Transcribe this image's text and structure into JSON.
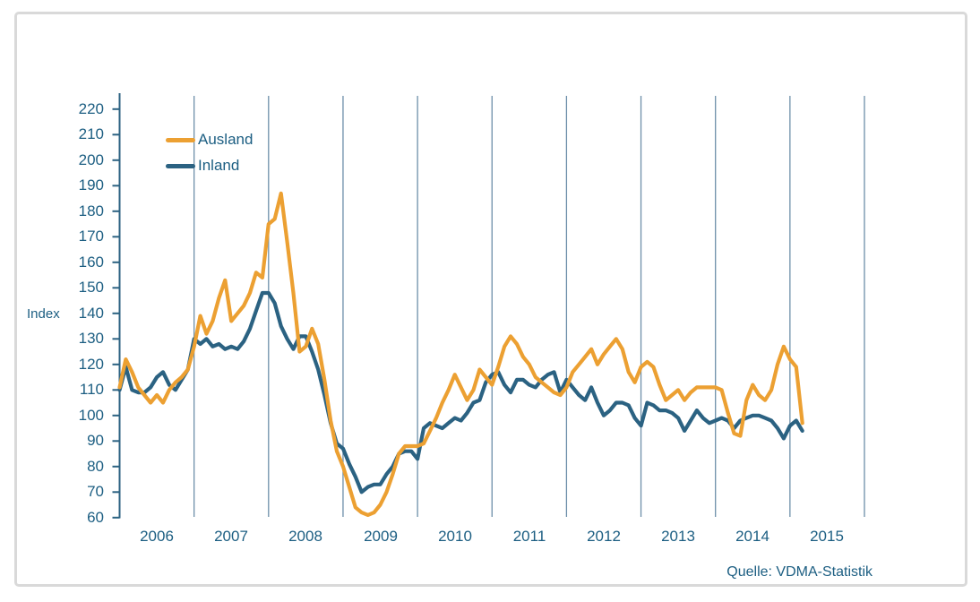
{
  "source_note": "Quelle: VDMA-Statistik",
  "colors": {
    "ausland": "#eca032",
    "inland": "#2b6282",
    "axis": "#2c6282",
    "gridline": "#6d8fa9",
    "text": "#1c5e82",
    "frame_border": "#d9d9d9"
  },
  "legend": {
    "items": [
      {
        "label": "Ausland",
        "color": "#eca032"
      },
      {
        "label": "Inland",
        "color": "#2b6282"
      }
    ]
  },
  "chart_data": {
    "type": "line",
    "title": "",
    "xlabel": "",
    "ylabel": "Index",
    "ylim": [
      60,
      220
    ],
    "ytick_step": 10,
    "yticks": [
      60,
      70,
      80,
      90,
      100,
      110,
      120,
      130,
      140,
      150,
      160,
      170,
      180,
      190,
      200,
      210,
      220
    ],
    "xticklabels": [
      "2006",
      "2007",
      "2008",
      "2009",
      "2010",
      "2011",
      "2012",
      "2013",
      "2014",
      "2015"
    ],
    "x_unit": "month",
    "x_start": "2006-01",
    "x_end": "2015-03",
    "grid": "vertical-year-lines-only",
    "legend_position": "inside-top-left",
    "series": [
      {
        "name": "Inland",
        "color": "#2b6282",
        "values": [
          110,
          119,
          110,
          109,
          109,
          111,
          115,
          117,
          112,
          110,
          114,
          118,
          130,
          128,
          130,
          127,
          128,
          126,
          127,
          126,
          129,
          134,
          141,
          148,
          148,
          144,
          135,
          130,
          126,
          131,
          131,
          125,
          118,
          108,
          97,
          89,
          87,
          81,
          76,
          70,
          72,
          73,
          73,
          77,
          80,
          85,
          86,
          86,
          83,
          95,
          97,
          96,
          95,
          97,
          99,
          98,
          101,
          105,
          106,
          113,
          116,
          117,
          112,
          109,
          114,
          114,
          112,
          111,
          114,
          116,
          117,
          109,
          114,
          111,
          108,
          106,
          111,
          105,
          100,
          102,
          105,
          105,
          104,
          99,
          96,
          105,
          104,
          102,
          102,
          101,
          99,
          94,
          98,
          102,
          99,
          97,
          98,
          99,
          98,
          95,
          98,
          99,
          100,
          100,
          99,
          98,
          95,
          91,
          96,
          98,
          94
        ]
      },
      {
        "name": "Ausland",
        "color": "#eca032",
        "values": [
          111,
          122,
          117,
          111,
          108,
          105,
          108,
          105,
          110,
          113,
          115,
          118,
          127,
          139,
          132,
          137,
          146,
          153,
          137,
          140,
          143,
          148,
          156,
          154,
          175,
          177,
          187,
          168,
          148,
          125,
          127,
          134,
          128,
          114,
          98,
          86,
          80,
          72,
          64,
          62,
          61,
          62,
          65,
          70,
          77,
          85,
          88,
          88,
          88,
          89,
          94,
          99,
          105,
          110,
          116,
          111,
          106,
          110,
          118,
          115,
          112,
          119,
          127,
          131,
          128,
          123,
          120,
          115,
          113,
          111,
          109,
          108,
          111,
          117,
          120,
          123,
          126,
          120,
          124,
          127,
          130,
          126,
          117,
          113,
          119,
          121,
          119,
          112,
          106,
          108,
          110,
          106,
          109,
          111,
          111,
          111,
          111,
          110,
          101,
          93,
          92,
          106,
          112,
          108,
          106,
          110,
          120,
          127,
          122,
          119,
          97
        ]
      }
    ]
  }
}
